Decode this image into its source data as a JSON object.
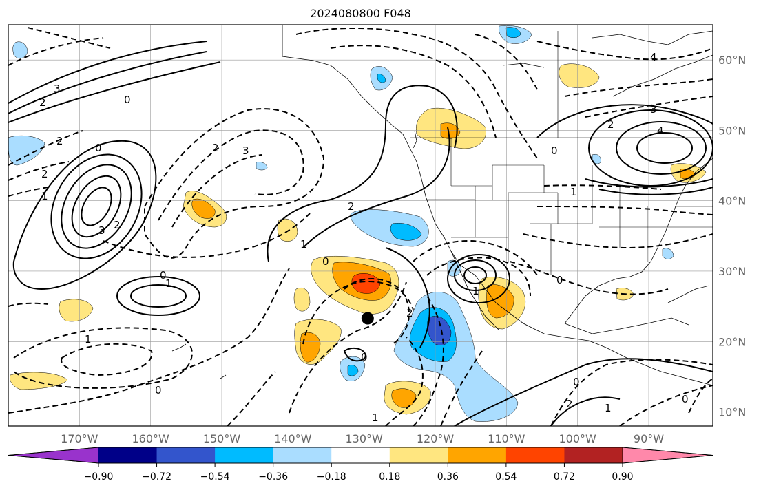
{
  "title": "2024080800 F048",
  "map": {
    "lon_range": [
      -180,
      -81
    ],
    "lat_range": [
      8,
      65
    ],
    "lon_ticks": [
      {
        "value": -170,
        "label": "170°W"
      },
      {
        "value": -160,
        "label": "160°W"
      },
      {
        "value": -150,
        "label": "150°W"
      },
      {
        "value": -140,
        "label": "140°W"
      },
      {
        "value": -130,
        "label": "130°W"
      },
      {
        "value": -120,
        "label": "120°W"
      },
      {
        "value": -110,
        "label": "110°W"
      },
      {
        "value": -100,
        "label": "100°W"
      },
      {
        "value": -90,
        "label": "90°W"
      }
    ],
    "lat_ticks": [
      {
        "value": 60,
        "label": "60°N"
      },
      {
        "value": 50,
        "label": "50°N"
      },
      {
        "value": 40,
        "label": "40°N"
      },
      {
        "value": 30,
        "label": "30°N"
      },
      {
        "value": 20,
        "label": "20°N"
      },
      {
        "value": 10,
        "label": "10°N"
      }
    ],
    "marker": {
      "lon": -129.5,
      "lat": 23.3,
      "color": "#000000"
    },
    "gridlines": true
  },
  "colorbar": {
    "colors": [
      "#9933cc",
      "#000088",
      "#3355cc",
      "#00bbff",
      "#aaddff",
      "#ffffff",
      "#ffe680",
      "#ffa500",
      "#ff4400",
      "#b22222",
      "#ff88aa"
    ],
    "tick_labels": [
      "−0.90",
      "−0.72",
      "−0.54",
      "−0.36",
      "−0.18",
      "0.18",
      "0.36",
      "0.54",
      "0.72",
      "0.90"
    ]
  },
  "contour_labels": [
    "2",
    "3",
    "2",
    "1",
    "0",
    "2",
    "1",
    "2",
    "3",
    "0",
    "1",
    "0",
    "1",
    "2",
    "3",
    "4",
    "0",
    "0",
    "1",
    "2",
    "0",
    "0",
    "1",
    "2",
    "3",
    "4",
    "0",
    "1",
    "2",
    "1",
    "0",
    "2",
    "0"
  ]
}
